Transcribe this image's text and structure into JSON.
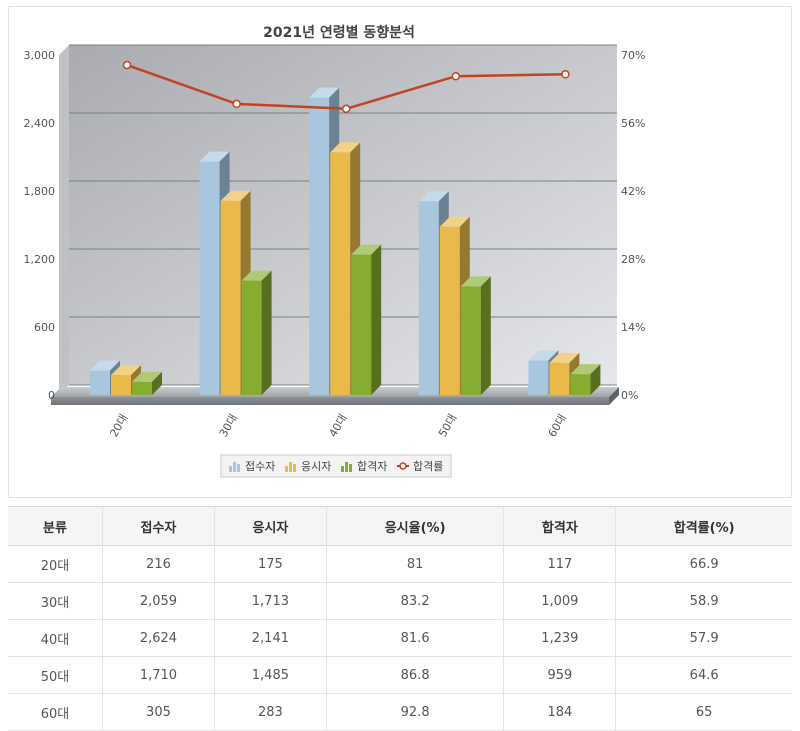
{
  "chart_data": {
    "type": "bar",
    "title": "2021년 연령별 동향분석",
    "categories": [
      "20대",
      "30대",
      "40대",
      "50대",
      "60대"
    ],
    "series": [
      {
        "name": "접수자",
        "type": "bar",
        "axis": "left",
        "color": "#a9c6df",
        "values": [
          216,
          2059,
          2624,
          1710,
          305
        ]
      },
      {
        "name": "응시자",
        "type": "bar",
        "axis": "left",
        "color": "#e9b94a",
        "values": [
          175,
          1713,
          2141,
          1485,
          283
        ]
      },
      {
        "name": "합격자",
        "type": "bar",
        "axis": "left",
        "color": "#86ad2f",
        "values": [
          117,
          1009,
          1239,
          959,
          184
        ]
      },
      {
        "name": "합격률",
        "type": "line",
        "axis": "right",
        "color": "#c0441f",
        "values": [
          66.9,
          58.9,
          57.9,
          64.6,
          65
        ]
      }
    ],
    "y_left": {
      "min": 0,
      "max": 3000,
      "ticks": [
        "0",
        "600",
        "1,200",
        "1,800",
        "2,400",
        "3,000"
      ]
    },
    "y_right": {
      "min": 0,
      "max": 70,
      "ticks": [
        "0%",
        "14%",
        "28%",
        "42%",
        "56%",
        "70%"
      ]
    },
    "grid": true,
    "legend_position": "bottom"
  },
  "table": {
    "headers": [
      "분류",
      "접수자",
      "응시자",
      "응시율(%)",
      "합격자",
      "합격률(%)"
    ],
    "rows": [
      [
        "20대",
        "216",
        "175",
        "81",
        "117",
        "66.9"
      ],
      [
        "30대",
        "2,059",
        "1,713",
        "83.2",
        "1,009",
        "58.9"
      ],
      [
        "40대",
        "2,624",
        "2,141",
        "81.6",
        "1,239",
        "57.9"
      ],
      [
        "50대",
        "1,710",
        "1,485",
        "86.8",
        "959",
        "64.6"
      ],
      [
        "60대",
        "305",
        "283",
        "92.8",
        "184",
        "65"
      ]
    ]
  }
}
